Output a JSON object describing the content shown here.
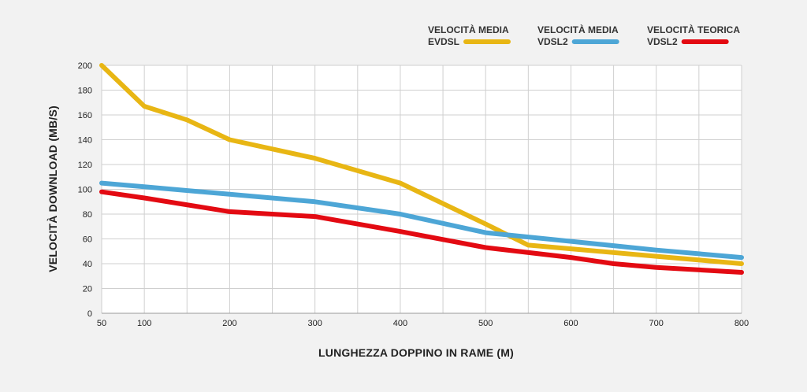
{
  "chart_data": {
    "type": "line",
    "title": "",
    "xlabel": "LUNGHEZZA DOPPINO IN RAME (M)",
    "ylabel": "VELOCITÀ DOWNLOAD (MB/S)",
    "xlim": [
      50,
      800
    ],
    "ylim": [
      0,
      200
    ],
    "x_ticks": [
      50,
      100,
      200,
      300,
      400,
      500,
      600,
      700,
      800
    ],
    "y_ticks": [
      0,
      20,
      40,
      60,
      80,
      100,
      120,
      140,
      160,
      180,
      200
    ],
    "grid": true,
    "legend_position": "top-right",
    "series": [
      {
        "name_line1": "VELOCITÀ MEDIA",
        "name_line2": "EVDSL",
        "color": "#e8b614",
        "points": [
          [
            50,
            200
          ],
          [
            100,
            167
          ],
          [
            150,
            156
          ],
          [
            200,
            140
          ],
          [
            300,
            125
          ],
          [
            400,
            105
          ],
          [
            500,
            72
          ],
          [
            550,
            55
          ],
          [
            600,
            52
          ],
          [
            700,
            46
          ],
          [
            800,
            40
          ]
        ]
      },
      {
        "name_line1": "VELOCITÀ MEDIA",
        "name_line2": "VDSL2",
        "color": "#4da6d6",
        "points": [
          [
            50,
            105
          ],
          [
            100,
            102
          ],
          [
            200,
            96
          ],
          [
            300,
            90
          ],
          [
            400,
            80
          ],
          [
            500,
            65
          ],
          [
            600,
            58
          ],
          [
            700,
            51
          ],
          [
            800,
            45
          ]
        ]
      },
      {
        "name_line1": "VELOCITÀ TEORICA",
        "name_line2": "VDSL2",
        "color": "#e30a12",
        "points": [
          [
            50,
            98
          ],
          [
            100,
            93
          ],
          [
            200,
            82
          ],
          [
            300,
            78
          ],
          [
            400,
            66
          ],
          [
            500,
            53
          ],
          [
            600,
            45
          ],
          [
            650,
            40
          ],
          [
            700,
            37
          ],
          [
            800,
            33
          ]
        ]
      }
    ]
  }
}
